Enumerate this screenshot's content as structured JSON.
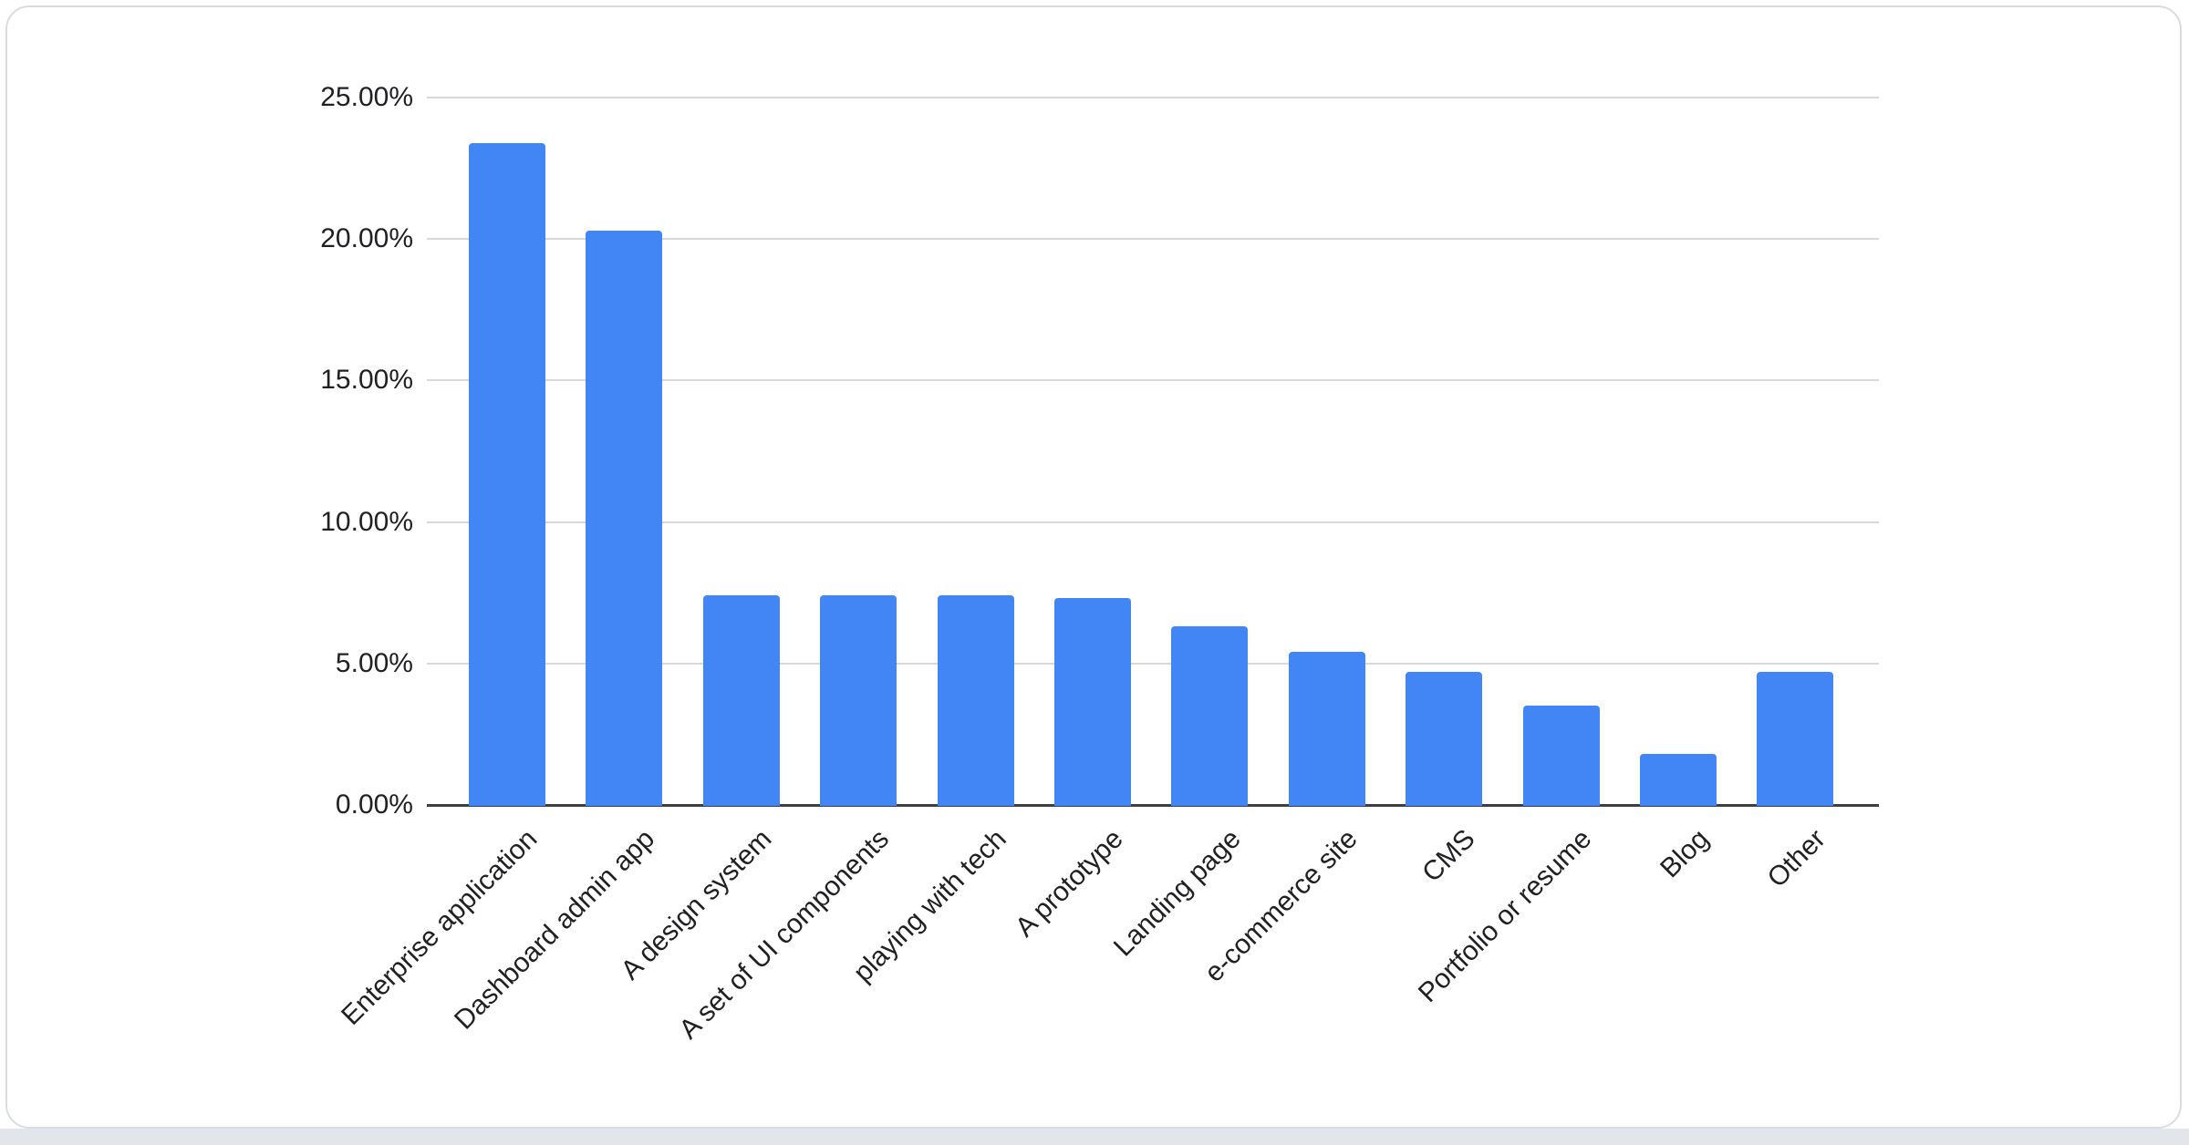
{
  "page": {
    "background_color": "#ffffff",
    "footer_strip_color": "#e2e5ea"
  },
  "card": {
    "background_color": "#ffffff",
    "border_color": "#d9dce1"
  },
  "chart_data": {
    "type": "bar",
    "title": "",
    "xlabel": "",
    "ylabel": "",
    "legend_position": "none",
    "grid": true,
    "bar_color": "#4285f4",
    "gridline_color": "#d9d9d9",
    "axis_line_color": "#3c4043",
    "tick_label_color": "#202124",
    "ylim": [
      0,
      25
    ],
    "y_axis": {
      "ticks": [
        {
          "value": 0,
          "label": "0.00%"
        },
        {
          "value": 5,
          "label": "5.00%"
        },
        {
          "value": 10,
          "label": "10.00%"
        },
        {
          "value": 15,
          "label": "15.00%"
        },
        {
          "value": 20,
          "label": "20.00%"
        },
        {
          "value": 25,
          "label": "25.00%"
        }
      ]
    },
    "categories": [
      "Enterprise application",
      "Dashboard admin app",
      "A design system",
      "A set of UI components",
      "playing with tech",
      "A prototype",
      "Landing page",
      "e-commerce site",
      "CMS",
      "Portfolio or resume",
      "Blog",
      "Other"
    ],
    "values": [
      23.4,
      20.3,
      7.4,
      7.4,
      7.4,
      7.3,
      6.3,
      5.4,
      4.7,
      3.5,
      1.8,
      4.7
    ]
  }
}
